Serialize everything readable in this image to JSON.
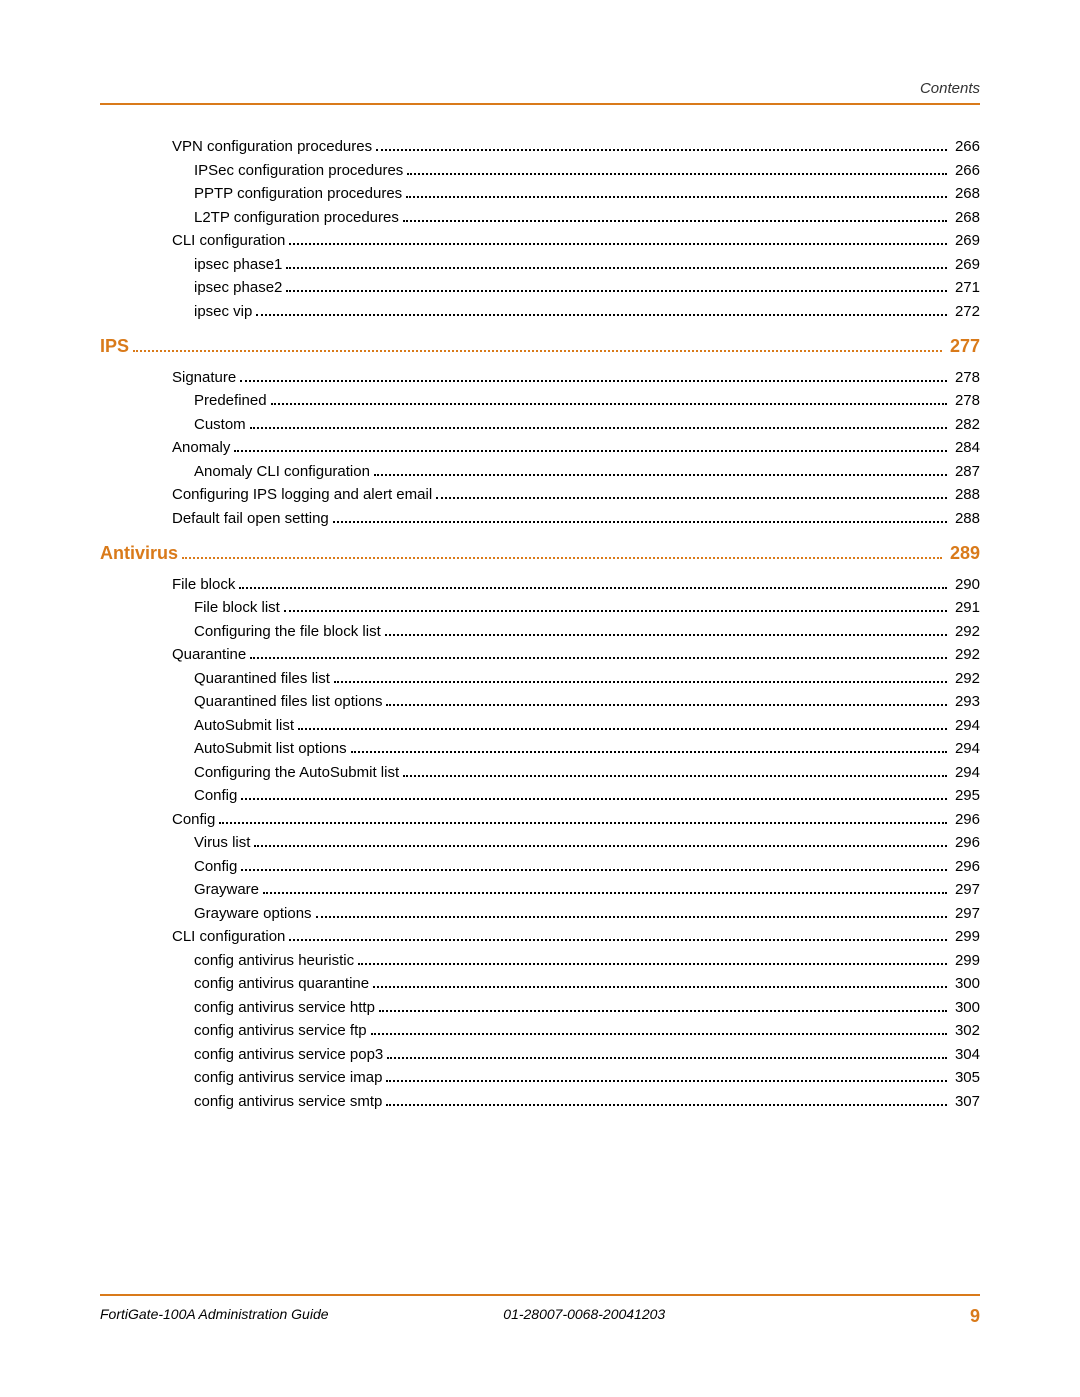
{
  "header": {
    "label": "Contents"
  },
  "accent_color": "#d97a1a",
  "toc": [
    {
      "indent": 1,
      "label": "VPN configuration procedures",
      "page": "266"
    },
    {
      "indent": 2,
      "label": "IPSec configuration procedures",
      "page": "266"
    },
    {
      "indent": 2,
      "label": "PPTP configuration procedures",
      "page": "268"
    },
    {
      "indent": 2,
      "label": "L2TP configuration procedures",
      "page": "268"
    },
    {
      "indent": 1,
      "label": "CLI configuration",
      "page": "269"
    },
    {
      "indent": 2,
      "label": "ipsec phase1",
      "page": "269"
    },
    {
      "indent": 2,
      "label": "ipsec phase2",
      "page": "271"
    },
    {
      "indent": 2,
      "label": "ipsec vip",
      "page": "272"
    },
    {
      "indent": 0,
      "label": "IPS",
      "page": "277",
      "section": true
    },
    {
      "indent": 1,
      "label": "Signature",
      "page": "278"
    },
    {
      "indent": 2,
      "label": "Predefined",
      "page": "278"
    },
    {
      "indent": 2,
      "label": "Custom",
      "page": "282"
    },
    {
      "indent": 1,
      "label": "Anomaly",
      "page": "284"
    },
    {
      "indent": 2,
      "label": "Anomaly CLI configuration",
      "page": "287"
    },
    {
      "indent": 1,
      "label": "Configuring IPS logging and alert email",
      "page": "288"
    },
    {
      "indent": 1,
      "label": "Default fail open setting",
      "page": "288"
    },
    {
      "indent": 0,
      "label": "Antivirus",
      "page": "289",
      "section": true
    },
    {
      "indent": 1,
      "label": "File block",
      "page": "290"
    },
    {
      "indent": 2,
      "label": "File block list",
      "page": "291"
    },
    {
      "indent": 2,
      "label": "Configuring the file block list",
      "page": "292"
    },
    {
      "indent": 1,
      "label": "Quarantine",
      "page": "292"
    },
    {
      "indent": 2,
      "label": "Quarantined files list",
      "page": "292"
    },
    {
      "indent": 2,
      "label": "Quarantined files list options",
      "page": "293"
    },
    {
      "indent": 2,
      "label": "AutoSubmit list",
      "page": "294"
    },
    {
      "indent": 2,
      "label": "AutoSubmit list options",
      "page": "294"
    },
    {
      "indent": 2,
      "label": "Configuring the AutoSubmit list",
      "page": "294"
    },
    {
      "indent": 2,
      "label": "Config",
      "page": "295"
    },
    {
      "indent": 1,
      "label": "Config",
      "page": "296"
    },
    {
      "indent": 2,
      "label": "Virus list",
      "page": "296"
    },
    {
      "indent": 2,
      "label": "Config",
      "page": "296"
    },
    {
      "indent": 2,
      "label": "Grayware",
      "page": "297"
    },
    {
      "indent": 2,
      "label": "Grayware options",
      "page": "297"
    },
    {
      "indent": 1,
      "label": "CLI configuration",
      "page": "299"
    },
    {
      "indent": 2,
      "label": "config antivirus heuristic",
      "page": "299"
    },
    {
      "indent": 2,
      "label": "config antivirus quarantine",
      "page": "300"
    },
    {
      "indent": 2,
      "label": "config antivirus service http",
      "page": "300"
    },
    {
      "indent": 2,
      "label": "config antivirus service ftp",
      "page": "302"
    },
    {
      "indent": 2,
      "label": "config antivirus service pop3",
      "page": "304"
    },
    {
      "indent": 2,
      "label": "config antivirus service imap",
      "page": "305"
    },
    {
      "indent": 2,
      "label": "config antivirus service smtp",
      "page": "307"
    }
  ],
  "footer": {
    "guide": "FortiGate-100A Administration Guide",
    "docnum": "01-28007-0068-20041203",
    "page_number": "9"
  }
}
